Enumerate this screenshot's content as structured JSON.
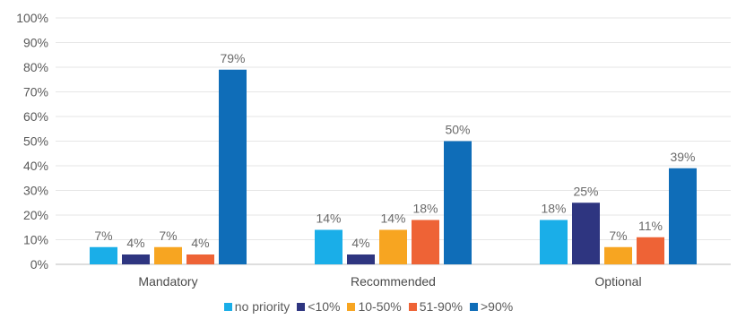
{
  "chart_data": {
    "type": "bar",
    "categories": [
      "Mandatory",
      "Recommended",
      "Optional"
    ],
    "series": [
      {
        "name": "no priority",
        "color": "#1aaee8",
        "values": [
          7,
          14,
          18
        ]
      },
      {
        "name": "<10%",
        "color": "#2e3580",
        "values": [
          4,
          4,
          25
        ]
      },
      {
        "name": "10-50%",
        "color": "#f7a521",
        "values": [
          7,
          14,
          7
        ]
      },
      {
        "name": "51-90%",
        "color": "#ee6336",
        "values": [
          4,
          18,
          11
        ]
      },
      {
        "name": ">90%",
        "color": "#0f6db8",
        "values": [
          79,
          50,
          39
        ]
      }
    ],
    "data_labels": [
      [
        "7%",
        "4%",
        "7%",
        "4%",
        "79%"
      ],
      [
        "14%",
        "4%",
        "14%",
        "18%",
        "50%"
      ],
      [
        "18%",
        "25%",
        "7%",
        "11%",
        "39%"
      ]
    ],
    "yticks": [
      "0%",
      "10%",
      "20%",
      "30%",
      "40%",
      "50%",
      "60%",
      "70%",
      "80%",
      "90%",
      "100%"
    ],
    "ylim": [
      0,
      100
    ],
    "grid": true,
    "legend_position": "bottom"
  }
}
